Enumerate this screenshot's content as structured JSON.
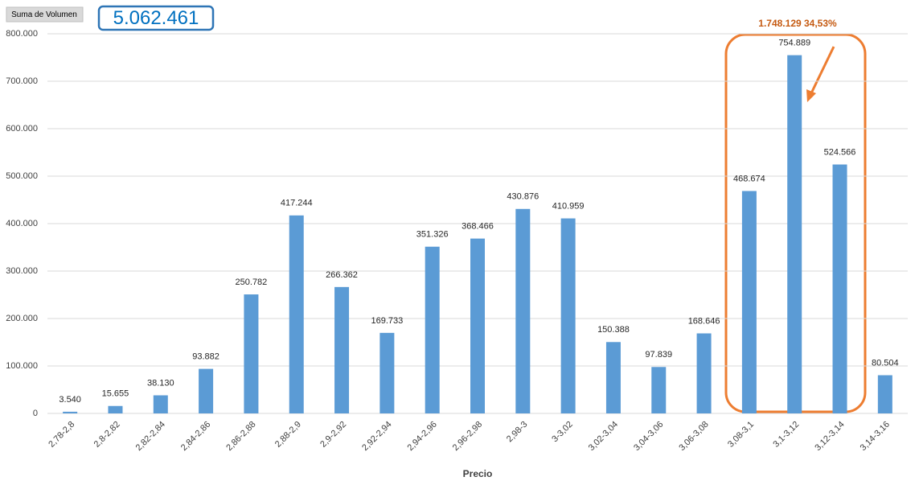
{
  "chart_data": {
    "type": "bar",
    "field_button": "Suma de Volumen",
    "total": "5.062.461",
    "annotation": "1.748.129 34,53%",
    "x_label": "Precio",
    "categories": [
      "2,78-2,8",
      "2,8-2,82",
      "2,82-2,84",
      "2,84-2,86",
      "2,86-2,88",
      "2,88-2,9",
      "2,9-2,92",
      "2,92-2,94",
      "2,94-2,96",
      "2,96-2,98",
      "2,98-3",
      "3-3,02",
      "3,02-3,04",
      "3,04-3,06",
      "3,06-3,08",
      "3,08-3,1",
      "3,1-3,12",
      "3,12-3,14",
      "3,14-3,16"
    ],
    "values": [
      3540,
      15655,
      38130,
      93882,
      250782,
      417244,
      266362,
      169733,
      351326,
      368466,
      430876,
      410959,
      150388,
      97839,
      168646,
      468674,
      754889,
      524566,
      80504
    ],
    "value_labels": [
      "3.540",
      "15.655",
      "38.130",
      "93.882",
      "250.782",
      "417.244",
      "266.362",
      "169.733",
      "351.326",
      "368.466",
      "430.876",
      "410.959",
      "150.388",
      "97.839",
      "168.646",
      "468.674",
      "754.889",
      "524.566",
      "80.504"
    ],
    "color": "#5b9bd5",
    "ylim": [
      0,
      800000
    ],
    "yticks": [
      0,
      {
        "value": 100000,
        "label": "100.000"
      },
      {
        "value": 200000,
        "label": "200.000"
      },
      {
        "value": 300000,
        "label": "300.000"
      },
      {
        "value": 400000,
        "label": "400.000"
      },
      {
        "value": 500000,
        "label": "500.000"
      },
      {
        "value": 600000,
        "label": "600.000"
      },
      {
        "value": 700000,
        "label": "700.000"
      },
      {
        "value": 800000,
        "label": "800.000"
      }
    ],
    "grid": true
  }
}
